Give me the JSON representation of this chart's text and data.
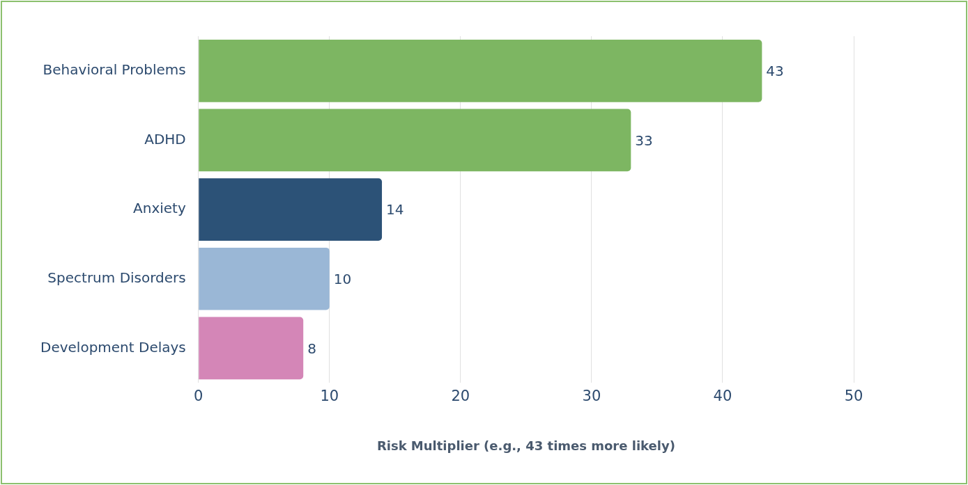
{
  "chart_data": {
    "type": "bar",
    "orientation": "horizontal",
    "categories": [
      "Behavioral Problems",
      "ADHD",
      "Anxiety",
      "Spectrum Disorders",
      "Development Delays"
    ],
    "values": [
      43,
      33,
      14,
      10,
      8
    ],
    "colors": [
      "#7db662",
      "#7db662",
      "#2c5277",
      "#9ab7d6",
      "#d486b7"
    ],
    "xlabel": "Risk Multiplier (e.g., 43 times more likely)",
    "xlim": [
      0,
      50
    ],
    "xticks": [
      0,
      10,
      20,
      30,
      40,
      50
    ],
    "grid": "x",
    "legend": false,
    "data_labels": true
  }
}
